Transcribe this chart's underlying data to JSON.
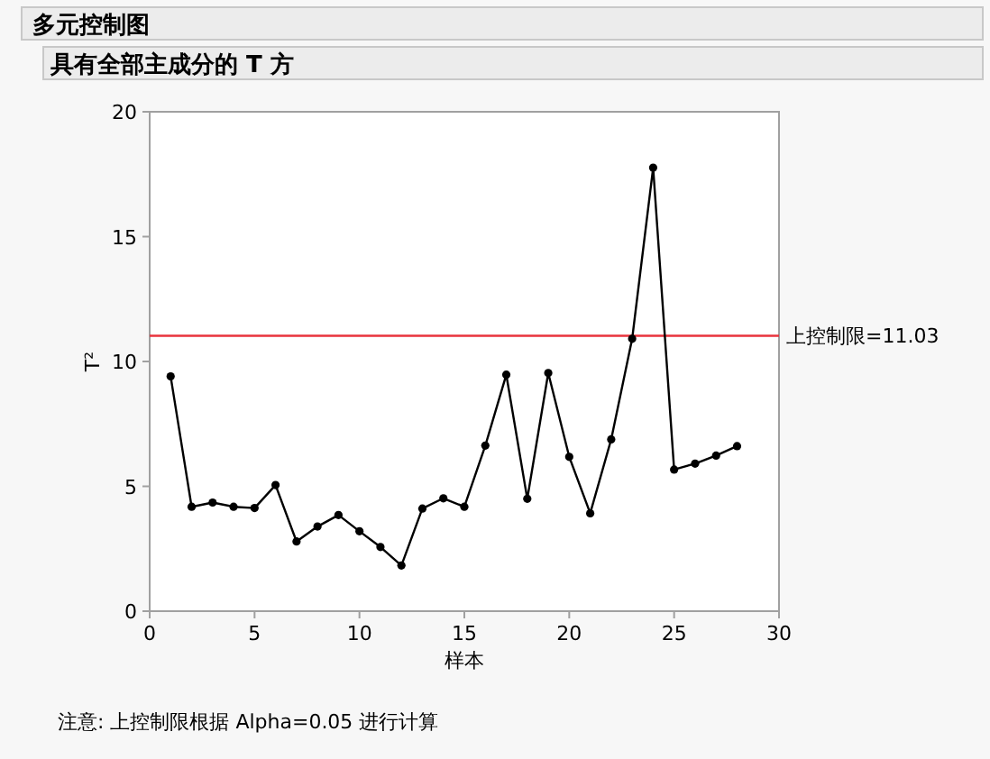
{
  "chart_data": {
    "type": "line",
    "title": "多元控制图",
    "subtitle": "具有全部主成分的 T 方",
    "xlabel": "样本",
    "ylabel": "T²",
    "x": [
      1,
      2,
      3,
      4,
      5,
      6,
      7,
      8,
      9,
      10,
      11,
      12,
      13,
      14,
      15,
      16,
      17,
      18,
      19,
      20,
      21,
      22,
      23,
      24,
      25,
      26,
      27,
      28
    ],
    "series": [
      {
        "color": "#000000",
        "values": [
          9.4,
          4.18,
          4.35,
          4.18,
          4.13,
          5.05,
          2.79,
          3.39,
          3.85,
          3.2,
          2.57,
          1.83,
          4.11,
          4.52,
          4.18,
          6.63,
          9.47,
          4.5,
          9.54,
          6.18,
          3.92,
          6.88,
          10.91,
          17.76,
          5.67,
          5.91,
          6.23,
          6.61
        ]
      }
    ],
    "xlim": [
      0,
      30
    ],
    "xticks": [
      0,
      5,
      10,
      15,
      20,
      25,
      30
    ],
    "ylim": [
      0,
      20
    ],
    "yticks": [
      0,
      5,
      10,
      15,
      20
    ],
    "marker": "circle",
    "line_style": "solid",
    "grid": false,
    "ref_lines": [
      {
        "axis": "y",
        "value": 11.03,
        "label": "上控制限=11.03",
        "color": "#e8333c"
      }
    ],
    "annotations": [
      "注意: 上控制限根据 Alpha=0.05 进行计算"
    ]
  }
}
